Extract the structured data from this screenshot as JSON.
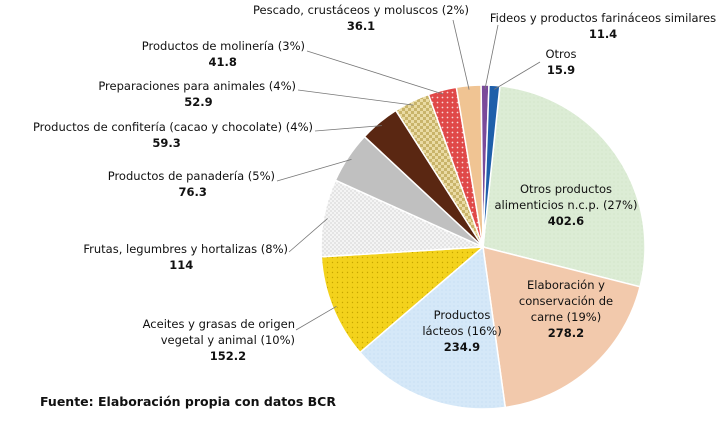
{
  "chart_data": {
    "type": "pie",
    "source": "Fuente: Elaboración propia con datos BCR",
    "slices": [
      {
        "label": "Otros productos alimenticios n.c.p. (27%)",
        "value": 402.6,
        "color": "#d9ead3"
      },
      {
        "label": "Elaboración y conservación de carne (19%)",
        "value": 278.2,
        "color": "#f2c9ac"
      },
      {
        "label": "Productos lácteos (16%)",
        "value": 234.9,
        "color": "#d3e6f7"
      },
      {
        "label": "Aceites y grasas de origen vegetal y animal (10%)",
        "value": 152.2,
        "color": "#f3d21c"
      },
      {
        "label": "Frutas, legumbres y hortalizas (8%)",
        "value": 114,
        "color": "#ececec"
      },
      {
        "label": "Productos de panadería (5%)",
        "value": 76.3,
        "color": "#c0c0c0"
      },
      {
        "label": "Productos de confitería (cacao y chocolate) (4%)",
        "value": 59.3,
        "color": "#5a2712"
      },
      {
        "label": "Preparaciones para animales (4%)",
        "value": 52.9,
        "color": "#e6d49a"
      },
      {
        "label": "Productos de molinería (3%)",
        "value": 41.8,
        "color": "#e04848"
      },
      {
        "label": "Pescado, crustáceos y moluscos (2%)",
        "value": 36.1,
        "color": "#f0c493"
      },
      {
        "label": "Fideos y productos farináceos similares",
        "value": 11.4,
        "color": "#7a4a9a"
      },
      {
        "label": "Otros",
        "value": 15.9,
        "color": "#1f5faa"
      }
    ]
  }
}
